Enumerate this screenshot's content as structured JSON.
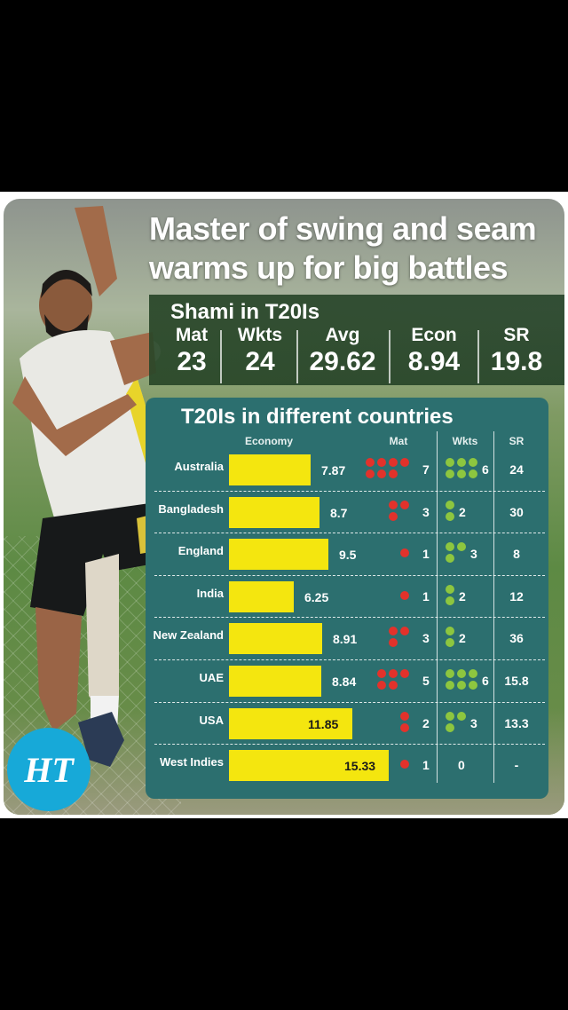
{
  "headline": "Master of swing and seam warms up for big battles",
  "stats": {
    "title": "Shami in T20Is",
    "items": [
      {
        "label": "Mat",
        "value": "23"
      },
      {
        "label": "Wkts",
        "value": "24"
      },
      {
        "label": "Avg",
        "value": "29.62"
      },
      {
        "label": "Econ",
        "value": "8.94"
      },
      {
        "label": "SR",
        "value": "19.8"
      }
    ]
  },
  "logo": "HT",
  "colors": {
    "bar": "#f4e60f",
    "mat_dot": "#e2322b",
    "wkt_dot": "#8dc63f",
    "panel": "#2c6f6f"
  },
  "chart_data": {
    "type": "table",
    "title": "T20Is in different countries",
    "columns": [
      "Economy",
      "Mat",
      "Wkts",
      "SR"
    ],
    "rows": [
      {
        "country": "Australia",
        "economy": "7.87",
        "mat": "7",
        "wkts": "6",
        "sr": "24"
      },
      {
        "country": "Bangladesh",
        "economy": "8.7",
        "mat": "3",
        "wkts": "2",
        "sr": "30"
      },
      {
        "country": "England",
        "economy": "9.5",
        "mat": "1",
        "wkts": "3",
        "sr": "8"
      },
      {
        "country": "India",
        "economy": "6.25",
        "mat": "1",
        "wkts": "2",
        "sr": "12"
      },
      {
        "country": "New Zealand",
        "economy": "8.91",
        "mat": "3",
        "wkts": "2",
        "sr": "36"
      },
      {
        "country": "UAE",
        "economy": "8.84",
        "mat": "5",
        "wkts": "6",
        "sr": "15.8"
      },
      {
        "country": "USA",
        "economy": "11.85",
        "mat": "2",
        "wkts": "3",
        "sr": "13.3"
      },
      {
        "country": "West Indies",
        "economy": "15.33",
        "mat": "1",
        "wkts": "0",
        "sr": "-"
      }
    ]
  }
}
